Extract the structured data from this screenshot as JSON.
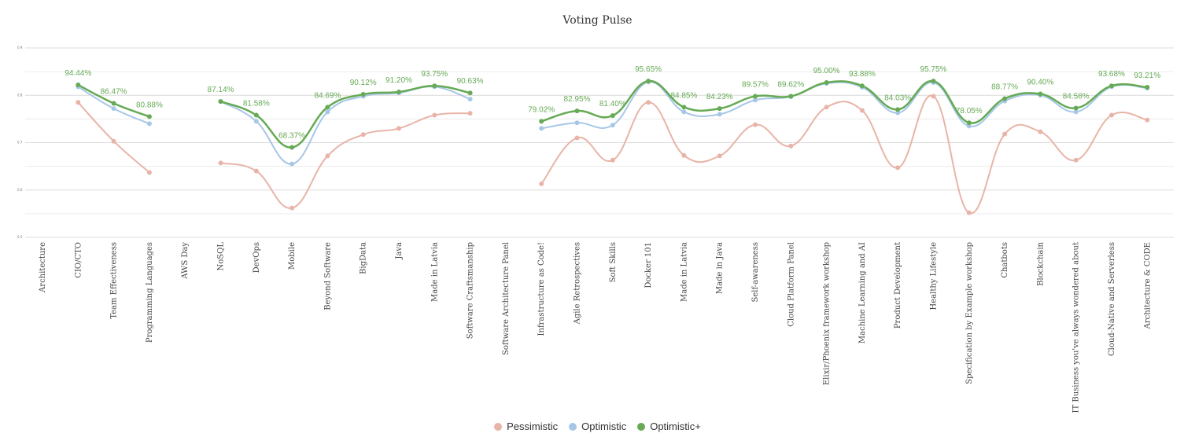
{
  "chart_data": {
    "type": "line",
    "title": "Voting Pulse",
    "ylim": [
      0.5,
      0.9
    ],
    "y_ticks": [
      "0.5",
      "0.6",
      "0.7",
      "0.8",
      "0.9"
    ],
    "categories": [
      "Architecture",
      "CIO/CTO",
      "Team Effectiveness",
      "Programming Languages",
      "AWS Day",
      "NoSQL",
      "DevOps",
      "Mobile",
      "Beyond Software",
      "BigData",
      "Java",
      "Made in Latvia",
      "Software Craftsmanship",
      "Software Architecture Panel",
      "Infrastructure as Code!",
      "Agile Retrospectives",
      "Soft Skills",
      "Docker 101",
      "Made in Latvia",
      "Made in Java",
      "Self-awareness",
      "Cloud Platform Panel",
      "Elixir/Phoenix framework workshop",
      "Machine Learning and AI",
      "Product Development",
      "Healthy Lifestyle",
      "Specification by Example workshop",
      "Chatbots",
      "Blockchain",
      "IT Business you've always wondered about",
      "Cloud-Native and Serverless",
      "Architecture & CODE"
    ],
    "series": [
      {
        "name": "Pessimistic",
        "color": "#e8b4a8",
        "values": [
          null,
          0.785,
          0.703,
          0.637,
          null,
          0.657,
          0.64,
          0.562,
          0.672,
          0.717,
          0.73,
          0.758,
          0.762,
          null,
          0.613,
          0.71,
          0.663,
          0.785,
          0.673,
          0.672,
          0.738,
          0.693,
          0.775,
          0.768,
          0.647,
          0.798,
          0.552,
          0.718,
          0.723,
          0.663,
          0.758,
          0.748
        ]
      },
      {
        "name": "Optimistic",
        "color": "#a7c7e7",
        "values": [
          null,
          0.818,
          0.772,
          0.74,
          null,
          0.787,
          0.745,
          0.655,
          0.765,
          0.798,
          0.805,
          0.818,
          0.792,
          null,
          0.73,
          0.742,
          0.737,
          0.828,
          0.765,
          0.76,
          0.79,
          0.797,
          0.825,
          0.817,
          0.763,
          0.827,
          0.735,
          0.788,
          0.8,
          0.765,
          0.818,
          0.815
        ]
      },
      {
        "name": "Optimistic+",
        "color": "#66aa55",
        "values": [
          null,
          0.822,
          0.783,
          0.755,
          null,
          0.787,
          0.758,
          0.69,
          0.775,
          0.802,
          0.807,
          0.82,
          0.805,
          null,
          0.745,
          0.767,
          0.757,
          0.83,
          0.775,
          0.772,
          0.798,
          0.798,
          0.827,
          0.82,
          0.77,
          0.83,
          0.742,
          0.793,
          0.803,
          0.773,
          0.82,
          0.817
        ]
      }
    ],
    "data_labels": [
      "",
      "94.44%",
      "86.47%",
      "80.88%",
      "",
      "87.14%",
      "81.58%",
      "68.37%",
      "84.69%",
      "90.12%",
      "91.20%",
      "93.75%",
      "90.63%",
      "",
      "79.02%",
      "82.95%",
      "81.40%",
      "95.65%",
      "84.85%",
      "84.23%",
      "89.57%",
      "89.62%",
      "95.00%",
      "93.88%",
      "84.03%",
      "95.75%",
      "78.05%",
      "88.77%",
      "90.40%",
      "84.58%",
      "93.68%",
      "93.21%"
    ],
    "legend_position": "bottom",
    "grid": true
  }
}
